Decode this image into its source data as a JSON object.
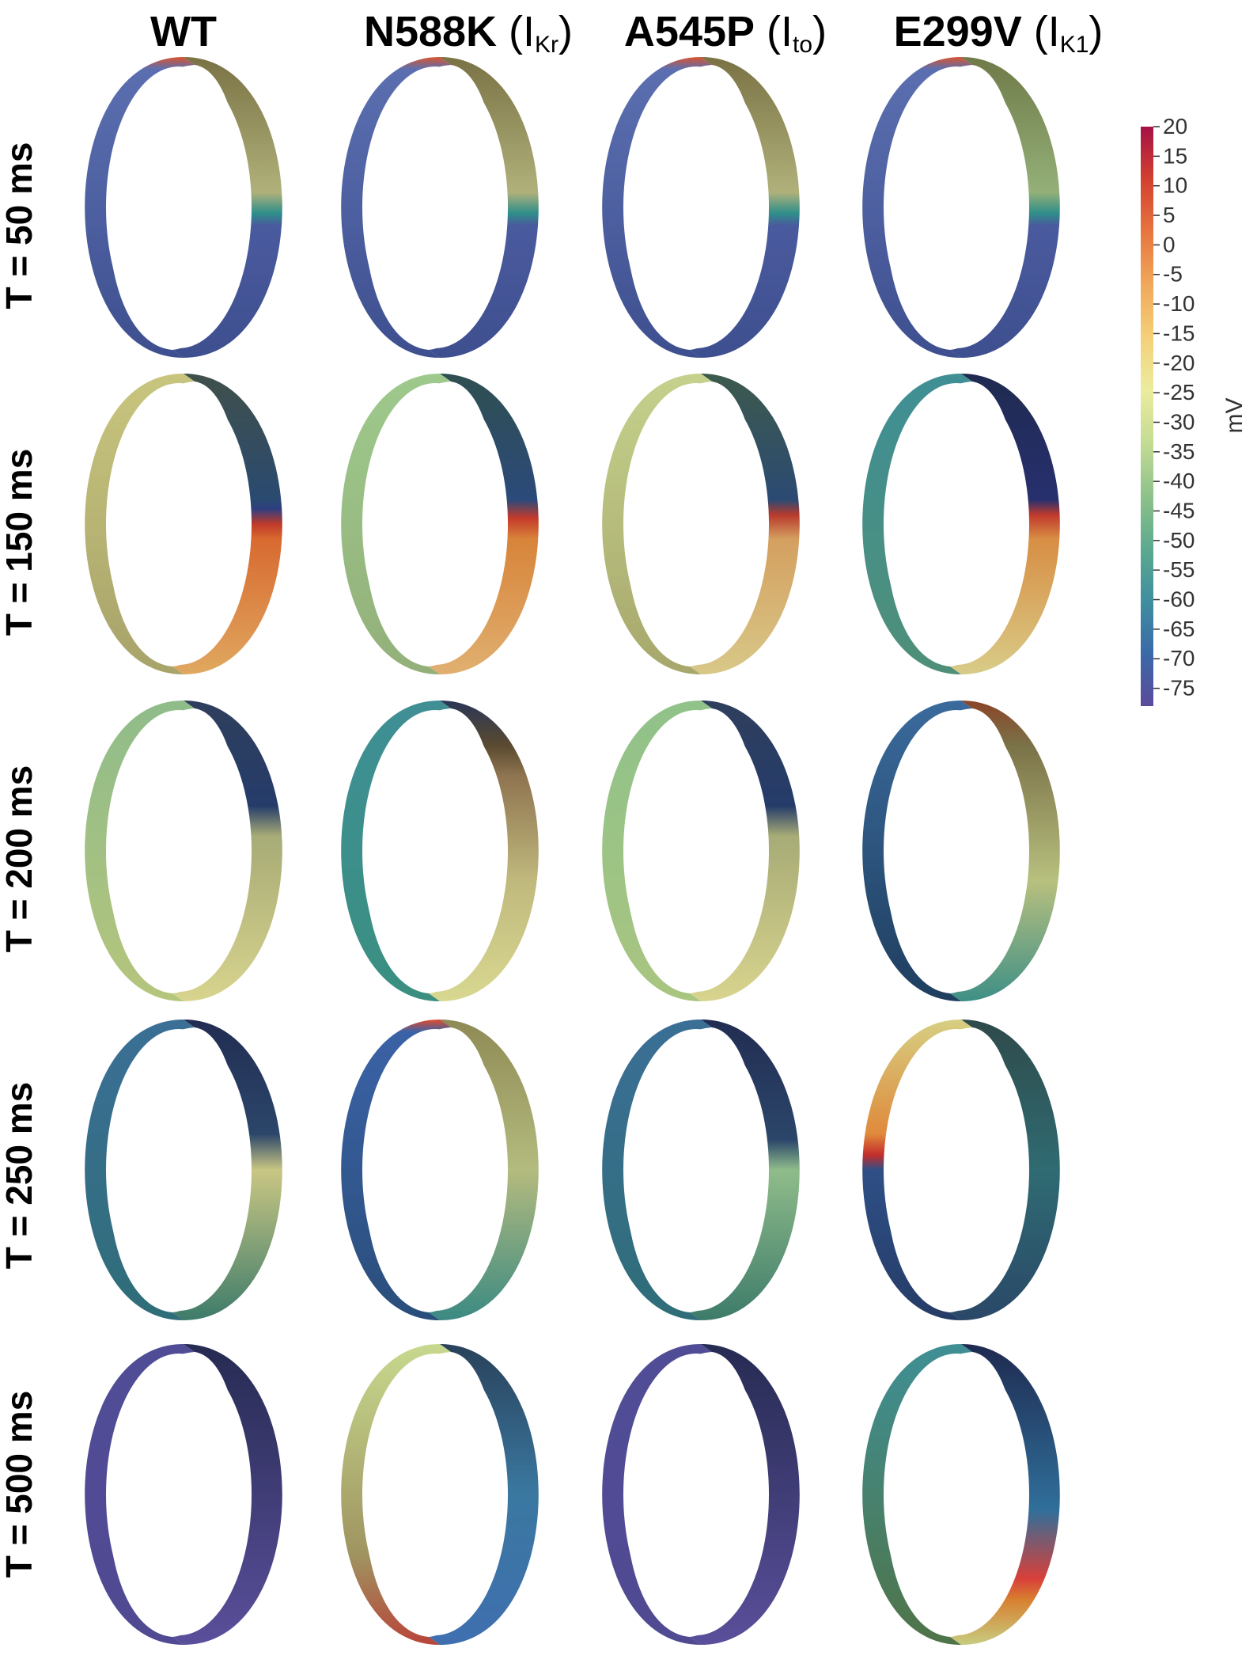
{
  "columns": [
    {
      "main": "WT",
      "current_prefix": "",
      "current_sub": "",
      "current_suffix": ""
    },
    {
      "main": "N588K",
      "current_prefix": " (I",
      "current_sub": "Kr",
      "current_suffix": ")"
    },
    {
      "main": "A545P",
      "current_prefix": " (I",
      "current_sub": "to",
      "current_suffix": ")"
    },
    {
      "main": "E299V",
      "current_prefix": " (I",
      "current_sub": "K1",
      "current_suffix": ")"
    }
  ],
  "rows": [
    "T = 50 ms",
    "T = 150 ms",
    "T = 200 ms",
    "T = 250 ms",
    "T = 500 ms"
  ],
  "colorbar": {
    "unit": "mV",
    "max": 20,
    "min": -78,
    "ticks": [
      "20",
      "15",
      "10",
      "5",
      "0",
      "-5",
      "-10",
      "-15",
      "-20",
      "-25",
      "-30",
      "-35",
      "-40",
      "-45",
      "-50",
      "-55",
      "-60",
      "-65",
      "-70",
      "-75"
    ],
    "tick_values": [
      20,
      15,
      10,
      5,
      0,
      -5,
      -10,
      -15,
      -20,
      -25,
      -30,
      -35,
      -40,
      -45,
      -50,
      -55,
      -60,
      -65,
      -70,
      -75
    ],
    "colors": [
      "#5b4a9b",
      "#3a6aa8",
      "#3f8fa0",
      "#5caa8e",
      "#8ec28a",
      "#c4dc93",
      "#ecec9e",
      "#f4d079",
      "#f0a85a",
      "#e8753f",
      "#d2412f",
      "#a61146"
    ]
  },
  "rings": [
    [
      {
        "left": [
          [
            0,
            "#d9542f"
          ],
          [
            0.04,
            "#5b6fb0"
          ],
          [
            1,
            "#3e4f8f"
          ]
        ],
        "right": [
          [
            0,
            "#7a7245"
          ],
          [
            0.45,
            "#b0b17a"
          ],
          [
            0.52,
            "#2e8e8a"
          ],
          [
            0.56,
            "#4a5a9e"
          ],
          [
            1,
            "#3e4f8f"
          ]
        ]
      },
      {
        "left": [
          [
            0,
            "#c8c57e"
          ],
          [
            1,
            "#a7a36a"
          ]
        ],
        "right": [
          [
            0,
            "#40504a"
          ],
          [
            0.42,
            "#2a4a70"
          ],
          [
            0.45,
            "#2e3f80"
          ],
          [
            0.5,
            "#c03a2a"
          ],
          [
            0.55,
            "#d86a30"
          ],
          [
            1,
            "#e0a860"
          ]
        ]
      },
      {
        "left": [
          [
            0,
            "#8fbc8a"
          ],
          [
            1,
            "#b5c57c"
          ]
        ],
        "right": [
          [
            0,
            "#2f3e5c"
          ],
          [
            0.35,
            "#253c6a"
          ],
          [
            0.45,
            "#a7ab76"
          ],
          [
            1,
            "#d8d48e"
          ]
        ]
      },
      {
        "left": [
          [
            0,
            "#3b6f96"
          ],
          [
            1,
            "#2f6d78"
          ]
        ],
        "right": [
          [
            0,
            "#222c52"
          ],
          [
            0.38,
            "#2b466a"
          ],
          [
            0.5,
            "#c9c683"
          ],
          [
            1,
            "#3d7b6a"
          ]
        ]
      },
      {
        "left": [
          [
            0,
            "#514c96"
          ],
          [
            1,
            "#4f4a92"
          ]
        ],
        "right": [
          [
            0,
            "#262b52"
          ],
          [
            1,
            "#5a4f9b"
          ]
        ]
      }
    ],
    [
      {
        "left": [
          [
            0,
            "#d9542f"
          ],
          [
            0.04,
            "#5b6fb0"
          ],
          [
            1,
            "#3e4f8f"
          ]
        ],
        "right": [
          [
            0,
            "#7a7245"
          ],
          [
            0.45,
            "#b0b17a"
          ],
          [
            0.52,
            "#2e8e8a"
          ],
          [
            0.56,
            "#4a5a9e"
          ],
          [
            1,
            "#3e4f8f"
          ]
        ]
      },
      {
        "left": [
          [
            0,
            "#9ec98c"
          ],
          [
            1,
            "#93b07a"
          ]
        ],
        "right": [
          [
            0,
            "#2f4f50"
          ],
          [
            0.42,
            "#2c4a7a"
          ],
          [
            0.48,
            "#c43a2a"
          ],
          [
            0.55,
            "#d8843a"
          ],
          [
            1,
            "#e0b070"
          ]
        ]
      },
      {
        "left": [
          [
            0,
            "#3f8f95"
          ],
          [
            1,
            "#3a8f80"
          ]
        ],
        "right": [
          [
            0,
            "#2a3656"
          ],
          [
            0.15,
            "#5a4a30"
          ],
          [
            0.25,
            "#8f7450"
          ],
          [
            0.6,
            "#c0b97d"
          ],
          [
            1,
            "#d8d890"
          ]
        ]
      },
      {
        "left": [
          [
            0,
            "#e34a2c"
          ],
          [
            0.04,
            "#3b62a6"
          ],
          [
            1,
            "#2a4e7a"
          ]
        ],
        "right": [
          [
            0,
            "#8f8a55"
          ],
          [
            0.5,
            "#b4bb7e"
          ],
          [
            1,
            "#3b8a82"
          ]
        ]
      },
      {
        "left": [
          [
            0,
            "#c7d98e"
          ],
          [
            0.7,
            "#9f9460"
          ],
          [
            1,
            "#b8453a"
          ]
        ],
        "right": [
          [
            0,
            "#29415a"
          ],
          [
            0.5,
            "#3a78a0"
          ],
          [
            1,
            "#3f6fb0"
          ]
        ]
      }
    ],
    [
      {
        "left": [
          [
            0,
            "#d9542f"
          ],
          [
            0.04,
            "#5b6fb0"
          ],
          [
            1,
            "#3e4f8f"
          ]
        ],
        "right": [
          [
            0,
            "#7a7245"
          ],
          [
            0.45,
            "#b0b17a"
          ],
          [
            0.52,
            "#2e8e8a"
          ],
          [
            0.56,
            "#4a5a9e"
          ],
          [
            1,
            "#3e4f8f"
          ]
        ]
      },
      {
        "left": [
          [
            0,
            "#c5d18c"
          ],
          [
            1,
            "#a7a76c"
          ]
        ],
        "right": [
          [
            0,
            "#3d5a4c"
          ],
          [
            0.42,
            "#2b4a72"
          ],
          [
            0.47,
            "#b83a2c"
          ],
          [
            0.55,
            "#d4a060"
          ],
          [
            1,
            "#d8c888"
          ]
        ]
      },
      {
        "left": [
          [
            0,
            "#90c28a"
          ],
          [
            1,
            "#a9c580"
          ]
        ],
        "right": [
          [
            0,
            "#2f3e5c"
          ],
          [
            0.35,
            "#253c6a"
          ],
          [
            0.45,
            "#a7ab76"
          ],
          [
            1,
            "#d8d48e"
          ]
        ]
      },
      {
        "left": [
          [
            0,
            "#3b6f96"
          ],
          [
            1,
            "#2f6d78"
          ]
        ],
        "right": [
          [
            0,
            "#222c52"
          ],
          [
            0.4,
            "#2b466a"
          ],
          [
            0.5,
            "#8fbc8a"
          ],
          [
            1,
            "#3d7b6a"
          ]
        ]
      },
      {
        "left": [
          [
            0,
            "#514c96"
          ],
          [
            1,
            "#4f4a92"
          ]
        ],
        "right": [
          [
            0,
            "#262b52"
          ],
          [
            1,
            "#5a4f9b"
          ]
        ]
      }
    ],
    [
      {
        "left": [
          [
            0,
            "#d9542f"
          ],
          [
            0.04,
            "#5b6fb0"
          ],
          [
            1,
            "#3e4f8f"
          ]
        ],
        "right": [
          [
            0,
            "#6f7a48"
          ],
          [
            0.45,
            "#94b078"
          ],
          [
            0.52,
            "#2e8e8a"
          ],
          [
            0.56,
            "#4a5a9e"
          ],
          [
            1,
            "#3e4f8f"
          ]
        ]
      },
      {
        "left": [
          [
            0,
            "#3f8f95"
          ],
          [
            1,
            "#4f8f78"
          ]
        ],
        "right": [
          [
            0,
            "#1f2a50"
          ],
          [
            0.42,
            "#27306e"
          ],
          [
            0.47,
            "#c03a2c"
          ],
          [
            0.55,
            "#d88e44"
          ],
          [
            1,
            "#d8cc88"
          ]
        ]
      },
      {
        "left": [
          [
            0,
            "#3a6a9c"
          ],
          [
            1,
            "#1f3e5e"
          ]
        ],
        "right": [
          [
            0,
            "#8a4428"
          ],
          [
            0.15,
            "#7a7248"
          ],
          [
            0.6,
            "#b8c07e"
          ],
          [
            1,
            "#3e8f86"
          ]
        ]
      },
      {
        "left": [
          [
            0,
            "#d6cf82"
          ],
          [
            0.38,
            "#e08a3c"
          ],
          [
            0.45,
            "#c42e2c"
          ],
          [
            0.5,
            "#2e4f86"
          ],
          [
            1,
            "#253c66"
          ]
        ],
        "right": [
          [
            0,
            "#2f4a4a"
          ],
          [
            0.5,
            "#2f6b72"
          ],
          [
            1,
            "#2a4868"
          ]
        ]
      },
      {
        "left": [
          [
            0,
            "#3f8f95"
          ],
          [
            1,
            "#4f7448"
          ]
        ],
        "right": [
          [
            0,
            "#1f2a50"
          ],
          [
            0.55,
            "#2f6f9a"
          ],
          [
            0.78,
            "#d8403a"
          ],
          [
            0.85,
            "#d88030"
          ],
          [
            1,
            "#c7cc80"
          ]
        ]
      }
    ]
  ]
}
